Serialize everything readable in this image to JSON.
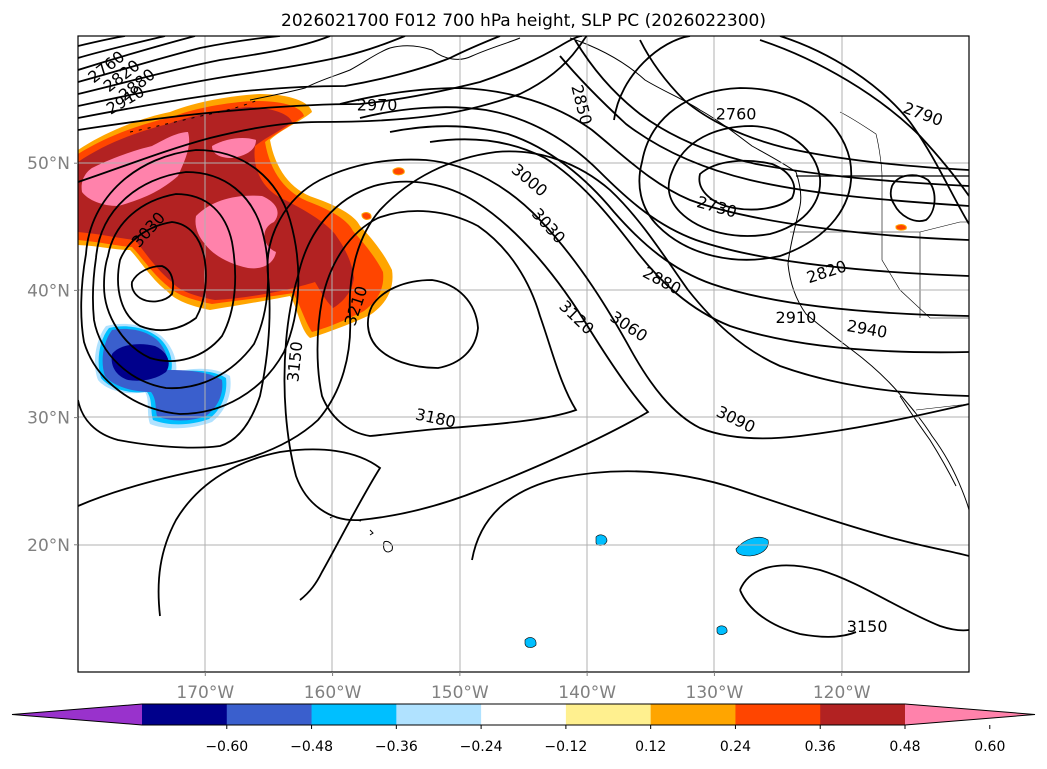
{
  "chart_data": {
    "type": "contour",
    "title": "2026021700 F012 700 hPa height, SLP PC (2026022300)",
    "xlabel": "",
    "ylabel": "",
    "lon_range": [
      -180,
      -110
    ],
    "lat_range": [
      10,
      60
    ],
    "x_ticks": [
      {
        "value": -170,
        "label": "170°W"
      },
      {
        "value": -160,
        "label": "160°W"
      },
      {
        "value": -150,
        "label": "150°W"
      },
      {
        "value": -140,
        "label": "140°W"
      },
      {
        "value": -130,
        "label": "130°W"
      },
      {
        "value": -120,
        "label": "120°W"
      }
    ],
    "y_ticks": [
      {
        "value": 20,
        "label": "20°N"
      },
      {
        "value": 30,
        "label": "30°N"
      },
      {
        "value": 40,
        "label": "40°N"
      },
      {
        "value": 50,
        "label": "50°N"
      }
    ],
    "grid": true,
    "colorbar": {
      "placement": "bottom",
      "extend": "both",
      "levels": [
        -0.72,
        -0.6,
        -0.48,
        -0.36,
        -0.24,
        -0.12,
        0.12,
        0.24,
        0.36,
        0.48,
        0.6,
        0.72
      ],
      "colors": [
        "#9932cc",
        "#00008b",
        "#3a5fcd",
        "#00bfff",
        "#b0e2ff",
        "#ffffff",
        "#fff08f",
        "#ffa500",
        "#ff4500",
        "#b22222",
        "#ff82ab"
      ],
      "tick_labels": [
        "−0.60",
        "−0.48",
        "−0.36",
        "−0.24",
        "−0.12",
        "0.12",
        "0.24",
        "0.36",
        "0.48",
        "0.60"
      ]
    },
    "contour_labels": [
      {
        "label": "2760",
        "lon": -177.8,
        "lat": 57.6,
        "rot": -38
      },
      {
        "label": "2820",
        "lon": -176.6,
        "lat": 56.9,
        "rot": -38
      },
      {
        "label": "2880",
        "lon": -175.4,
        "lat": 56.2,
        "rot": -38
      },
      {
        "label": "2910",
        "lon": -176.3,
        "lat": 55.0,
        "rot": -30
      },
      {
        "label": "2970",
        "lon": -156.5,
        "lat": 54.6,
        "rot": 0
      },
      {
        "label": "2850",
        "lon": -140.4,
        "lat": 54.6,
        "rot": 76
      },
      {
        "label": "2760",
        "lon": -128.3,
        "lat": 53.9,
        "rot": 0
      },
      {
        "label": "2790",
        "lon": -113.6,
        "lat": 53.9,
        "rot": 20
      },
      {
        "label": "3000",
        "lon": -144.5,
        "lat": 48.7,
        "rot": 40
      },
      {
        "label": "2730",
        "lon": -129.8,
        "lat": 46.6,
        "rot": 16
      },
      {
        "label": "3030",
        "lon": -174.5,
        "lat": 44.8,
        "rot": -48
      },
      {
        "label": "3030",
        "lon": -143.0,
        "lat": 45.1,
        "rot": 48
      },
      {
        "label": "2820",
        "lon": -121.2,
        "lat": 41.5,
        "rot": -18
      },
      {
        "label": "2880",
        "lon": -134.1,
        "lat": 40.8,
        "rot": 28
      },
      {
        "label": "3210",
        "lon": -158.2,
        "lat": 38.8,
        "rot": -72
      },
      {
        "label": "2910",
        "lon": -123.6,
        "lat": 37.9,
        "rot": 0
      },
      {
        "label": "2940",
        "lon": -118.0,
        "lat": 37.0,
        "rot": 10
      },
      {
        "label": "3120",
        "lon": -140.8,
        "lat": 37.9,
        "rot": 44
      },
      {
        "label": "3060",
        "lon": -136.7,
        "lat": 37.2,
        "rot": 34
      },
      {
        "label": "3150",
        "lon": -163.0,
        "lat": 34.4,
        "rot": -84
      },
      {
        "label": "3180",
        "lon": -151.9,
        "lat": 30.0,
        "rot": 12
      },
      {
        "label": "3090",
        "lon": -128.3,
        "lat": 29.9,
        "rot": 26
      },
      {
        "label": "3150",
        "lon": -118.0,
        "lat": 13.6,
        "rot": 0
      }
    ]
  }
}
